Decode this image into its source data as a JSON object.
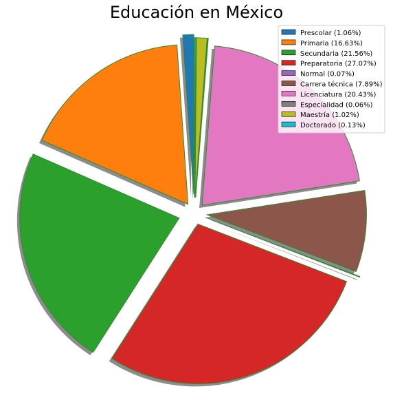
{
  "chart_data": {
    "type": "pie",
    "title": "Educación en México",
    "xlabel": "",
    "ylabel": "",
    "legend_position": "top-right",
    "shadow": true,
    "edge_color": "#2e8b2e",
    "slices": [
      {
        "label": "Prescolar (1.06%)",
        "value": 1.06,
        "color": "#1f77b4"
      },
      {
        "label": "Primaria (16.63%)",
        "value": 16.63,
        "color": "#ff7f0e"
      },
      {
        "label": "Secundaria (21.56%)",
        "value": 21.56,
        "color": "#2ca02c"
      },
      {
        "label": "Preparatoria (27.07%)",
        "value": 27.07,
        "color": "#d62728"
      },
      {
        "label": "Normal (0.07%)",
        "value": 0.07,
        "color": "#9467bd"
      },
      {
        "label": "Carrera técnica (7.89%)",
        "value": 7.89,
        "color": "#8c564b"
      },
      {
        "label": "Licenciatura (20.43%)",
        "value": 20.43,
        "color": "#e377c2"
      },
      {
        "label": "Especialidad (0.06%)",
        "value": 0.06,
        "color": "#7f7f7f"
      },
      {
        "label": "Maestría (1.02%)",
        "value": 1.02,
        "color": "#bcbd22"
      },
      {
        "label": "Doctorado (0.13%)",
        "value": 0.13,
        "color": "#17becf"
      }
    ]
  }
}
